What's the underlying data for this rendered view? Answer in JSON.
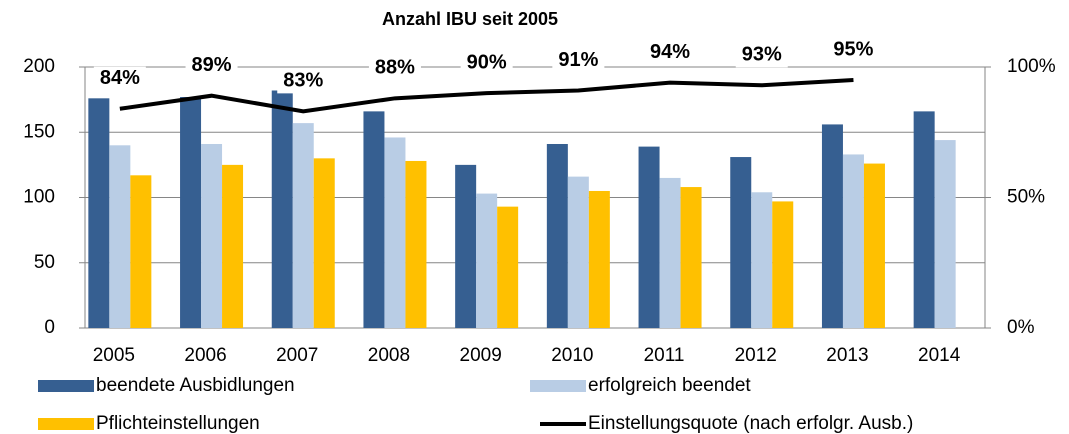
{
  "chart_data": {
    "type": "bar",
    "title": "Anzahl IBU seit 2005",
    "categories": [
      "2005",
      "2006",
      "2007",
      "2008",
      "2009",
      "2010",
      "2011",
      "2012",
      "2013",
      "2014"
    ],
    "series": [
      {
        "name": "beendete Ausbidlungen",
        "color": "#365f91",
        "values": [
          176,
          177,
          182,
          166,
          125,
          141,
          139,
          131,
          156,
          166
        ]
      },
      {
        "name": "erfolgreich beendet",
        "color": "#b9cde5",
        "values": [
          140,
          141,
          157,
          146,
          103,
          116,
          115,
          104,
          133,
          144
        ]
      },
      {
        "name": "Pflichteinstellungen",
        "color": "#ffc000",
        "values": [
          117,
          125,
          130,
          128,
          93,
          105,
          108,
          97,
          126,
          null
        ]
      },
      {
        "name": "Einstellungsquote (nach erfolgr. Ausb.)",
        "type": "line",
        "axis": "y2",
        "color": "#000000",
        "values": [
          84,
          89,
          83,
          88,
          90,
          91,
          94,
          93,
          95,
          null
        ],
        "value_labels": [
          "84%",
          "89%",
          "83%",
          "88%",
          "90%",
          "91%",
          "94%",
          "93%",
          "95%",
          null
        ]
      }
    ],
    "ylim": [
      0,
      200
    ],
    "yticks": [
      0,
      50,
      100,
      150,
      200
    ],
    "y2lim": [
      0,
      100
    ],
    "y2ticks": [
      {
        "value": 0,
        "label": "0%"
      },
      {
        "value": 50,
        "label": "50%"
      },
      {
        "value": 100,
        "label": "100%"
      }
    ],
    "grid": true,
    "legend": "bottom"
  }
}
